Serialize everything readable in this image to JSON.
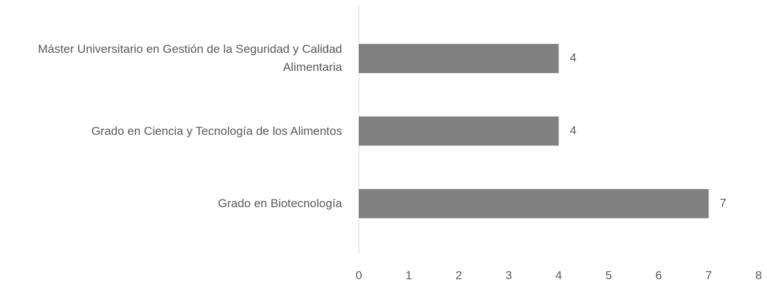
{
  "chart_data": {
    "type": "hbar",
    "categories": [
      "Máster Universitario en Gestión de la Seguridad y Calidad Alimentaria",
      "Grado en Ciencia y Tecnología de los Alimentos",
      "Grado en Biotecnología"
    ],
    "values": [
      4,
      4,
      7
    ],
    "color": "#808080",
    "xlim": [
      0,
      8
    ],
    "xticks": [
      0,
      1,
      2,
      3,
      4,
      5,
      6,
      7,
      8
    ],
    "grid": false
  }
}
